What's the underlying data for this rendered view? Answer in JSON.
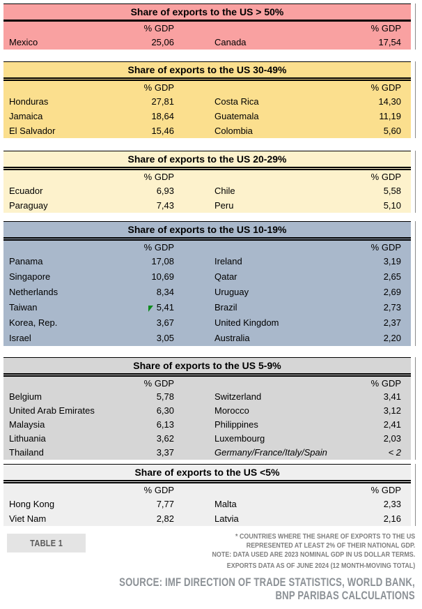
{
  "sections": [
    {
      "title": "Share of exports to the US > 50%",
      "col_header_left": "% GDP",
      "col_header_right": "% GDP",
      "color": "#F9A1A1",
      "rows": [
        {
          "c1": "Mexico",
          "v1": "25,06",
          "c2": "Canada",
          "v2": "17,54"
        }
      ]
    },
    {
      "title": "Share of exports to the US 30-49%",
      "col_header_left": "% GDP",
      "col_header_right": "% GDP",
      "color": "#FBDF8E",
      "rows": [
        {
          "c1": "Honduras",
          "v1": "27,81",
          "c2": "Costa Rica",
          "v2": "14,30"
        },
        {
          "c1": "Jamaica",
          "v1": "18,64",
          "c2": "Guatemala",
          "v2": "11,19"
        },
        {
          "c1": "El Salvador",
          "v1": "15,46",
          "c2": "Colombia",
          "v2": "5,60"
        }
      ]
    },
    {
      "title": "Share of exports to the US 20-29%",
      "col_header_left": "% GDP",
      "col_header_right": "% GDP",
      "color": "#FDF2CC",
      "rows": [
        {
          "c1": "Ecuador",
          "v1": "6,93",
          "c2": "Chile",
          "v2": "5,58"
        },
        {
          "c1": "Paraguay",
          "v1": "7,43",
          "c2": "Peru",
          "v2": "5,10"
        }
      ]
    },
    {
      "title": "Share of exports to the US 10-19%",
      "col_header_left": "% GDP",
      "col_header_right": "% GDP",
      "color": "#A9B8CB",
      "rows": [
        {
          "c1": "Panama",
          "v1": "17,08",
          "c2": "Ireland",
          "v2": "3,19"
        },
        {
          "c1": "Singapore",
          "v1": "10,69",
          "c2": "Qatar",
          "v2": "2,65"
        },
        {
          "c1": "Netherlands",
          "v1": "8,34",
          "c2": "Uruguay",
          "v2": "2,69"
        },
        {
          "c1": "Taiwan",
          "v1": "5,41",
          "c2": "Brazil",
          "v2": "2,73",
          "marker": "green-flag"
        },
        {
          "c1": "Korea, Rep.",
          "v1": "3,67",
          "c2": "United Kingdom",
          "v2": "2,37"
        },
        {
          "c1": "Israel",
          "v1": "3,05",
          "c2": "Australia",
          "v2": "2,20"
        }
      ]
    },
    {
      "title": "Share of exports to the US 5-9%",
      "col_header_left": "% GDP",
      "col_header_right": "% GDP",
      "color": "#D6D6D6",
      "rows": [
        {
          "c1": "Belgium",
          "v1": "5,78",
          "c2": "Switzerland",
          "v2": "3,41"
        },
        {
          "c1": "United Arab Emirates",
          "v1": "6,30",
          "c2": "Morocco",
          "v2": "3,12"
        },
        {
          "c1": "Malaysia",
          "v1": "6,13",
          "c2": "Philippines",
          "v2": "2,41"
        },
        {
          "c1": "Lithuania",
          "v1": "3,62",
          "c2": "Luxembourg",
          "v2": "2,03"
        },
        {
          "c1": "Thailand",
          "v1": "3,37",
          "c2": "Germany/France/Italy/Spain",
          "v2": "< 2",
          "c2_italic": true
        }
      ]
    },
    {
      "title": "Share of exports to the US <5%",
      "col_header_left": "% GDP",
      "col_header_right": "% GDP",
      "color": "#EFEFEF",
      "rows": [
        {
          "c1": "Hong Kong",
          "v1": "7,77",
          "c2": "Malta",
          "v2": "2,33"
        },
        {
          "c1": "Viet Nam",
          "v1": "2,82",
          "c2": "Latvia",
          "v2": "2,16"
        }
      ]
    }
  ],
  "footer": {
    "table_label": "TABLE 1",
    "note_lines": [
      "* COUNTRIES WHERE THE SHARE OF EXPORTS TO THE US",
      "REPRESENTED AT LEAST 2% OF THEIR NATIONAL GDP.",
      "NOTE: DATA USED ARE 2023 NOMINAL GDP IN US DOLLAR TERMS.",
      "EXPORTS DATA AS OF JUNE 2024 (12 MONTH-MOVING TOTAL)"
    ],
    "source_lines": [
      "SOURCE: IMF DIRECTION OF TRADE STATISTICS, WORLD BANK,",
      "BNP PARIBAS CALCULATIONS"
    ]
  },
  "colors": {
    "section_gt50": "#F9A1A1",
    "section_30_49": "#FBDF8E",
    "section_20_29": "#FDF2CC",
    "section_10_19": "#A9B8CB",
    "section_5_9": "#D6D6D6",
    "section_lt5": "#EFEFEF",
    "rule_black": "#000000",
    "right_rule_gray": "#8A8A8A",
    "taiwan_marker_green": "#0F8A1D",
    "table_label_bg": "#E4E4E4",
    "table_label_text": "#595959",
    "footnote_text": "#7F7F7F",
    "source_text": "#8C9196"
  },
  "icons": {
    "taiwan_marker": "green-flag-icon"
  }
}
